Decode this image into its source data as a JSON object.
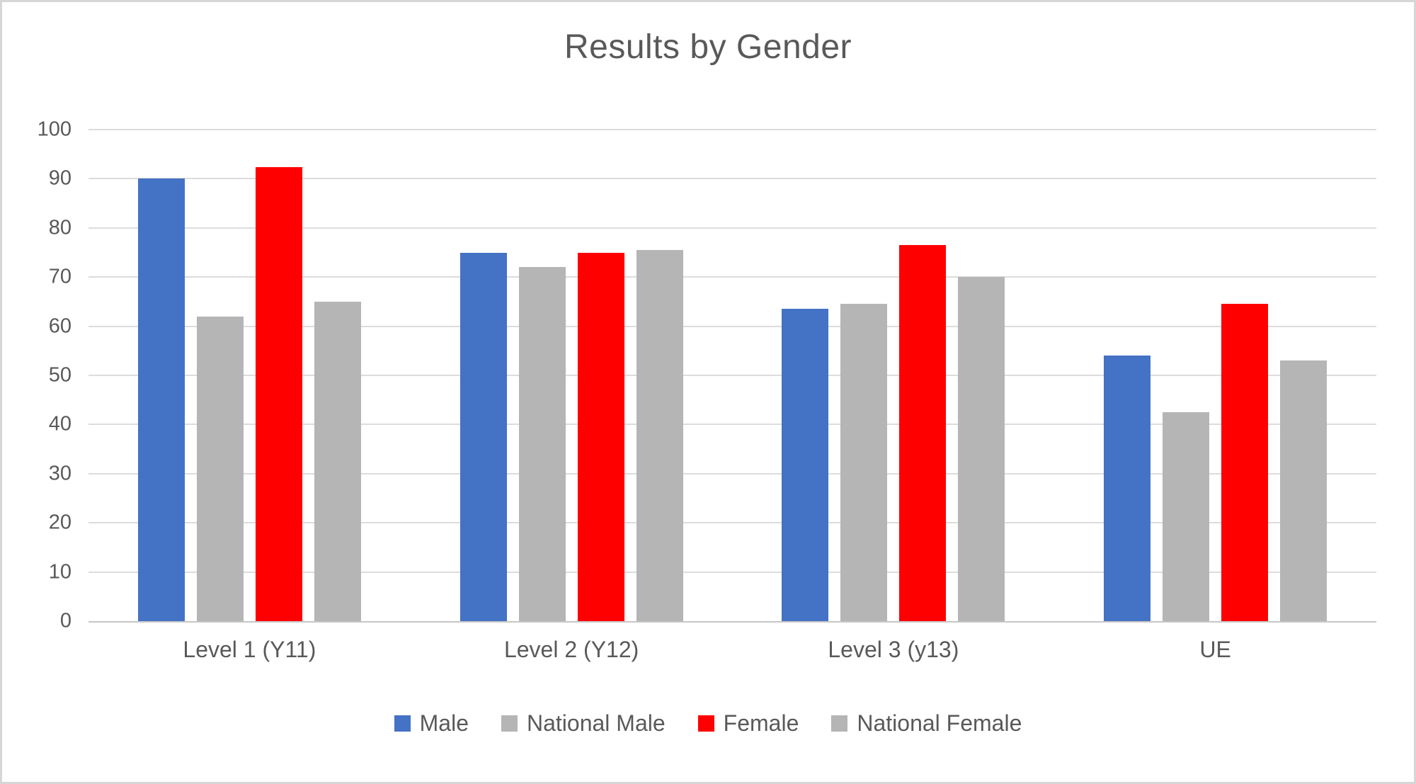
{
  "chart_data": {
    "type": "bar",
    "title": "Results by Gender",
    "categories": [
      "Level 1 (Y11)",
      "Level 2 (Y12)",
      "Level 3 (y13)",
      "UE"
    ],
    "series": [
      {
        "name": "Male",
        "color": "#4472C4",
        "values": [
          90,
          75,
          63.5,
          54
        ]
      },
      {
        "name": "National Male",
        "color": "#B5B5B5",
        "values": [
          62,
          72,
          64.5,
          42.5
        ]
      },
      {
        "name": "Female",
        "color": "#FF0000",
        "values": [
          92.3,
          75,
          76.5,
          64.5
        ]
      },
      {
        "name": "National Female",
        "color": "#B5B5B5",
        "values": [
          65,
          75.5,
          70,
          53
        ]
      }
    ],
    "xlabel": "",
    "ylabel": "",
    "ylim": [
      0,
      100
    ],
    "yticks": [
      0,
      10,
      20,
      30,
      40,
      50,
      60,
      70,
      80,
      90,
      100
    ],
    "grid": true,
    "legend_position": "bottom",
    "text_color": "#595959",
    "gridline_color": "#dcdcdc",
    "background_color": "#ffffff"
  }
}
